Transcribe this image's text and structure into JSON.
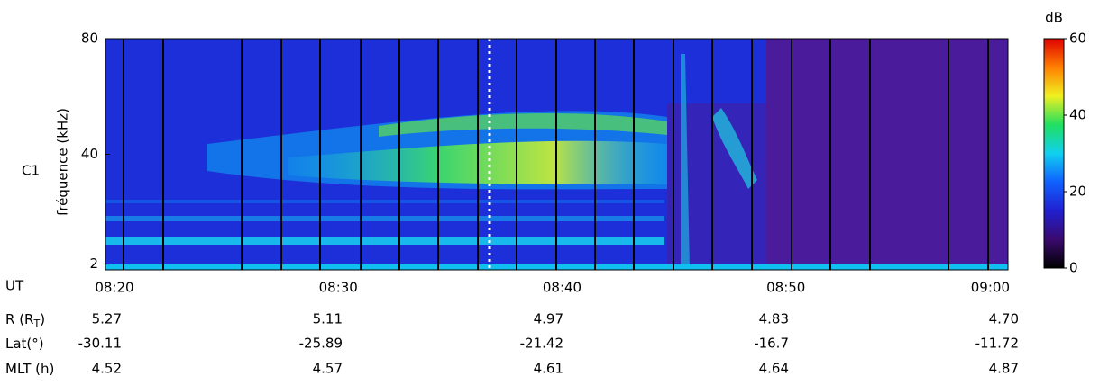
{
  "chart_data": {
    "type": "spectrogram",
    "panel_label": "C1",
    "ylabel": "fréquence (kHz)",
    "ylim": [
      0,
      80
    ],
    "yticks": [
      2,
      40,
      80
    ],
    "categories": [
      "08:20",
      "08:30",
      "08:40",
      "08:50",
      "09:00"
    ],
    "x_row_label": "UT",
    "colorbar": {
      "label": "dB",
      "clim": [
        0,
        60
      ],
      "ticks": [
        0,
        20,
        40,
        60
      ],
      "colormap": [
        "#000000",
        "#3a0a6e",
        "#2020d0",
        "#1060ff",
        "#10d0f0",
        "#20e060",
        "#f0f020",
        "#ff8000",
        "#e00000"
      ]
    },
    "rows": [
      {
        "label": {
          "text": "R (R",
          "sub": "T",
          "tail": ")"
        },
        "values": [
          "5.27",
          "5.11",
          "4.97",
          "4.83",
          "4.70"
        ]
      },
      {
        "label": {
          "text": "Lat(°)"
        },
        "values": [
          "-30.11",
          "-25.89",
          "-21.42",
          "-16.7",
          "-11.72"
        ]
      },
      {
        "label": {
          "text": "MLT (h)"
        },
        "values": [
          "4.52",
          "4.57",
          "4.61",
          "4.64",
          "4.87"
        ]
      }
    ]
  }
}
